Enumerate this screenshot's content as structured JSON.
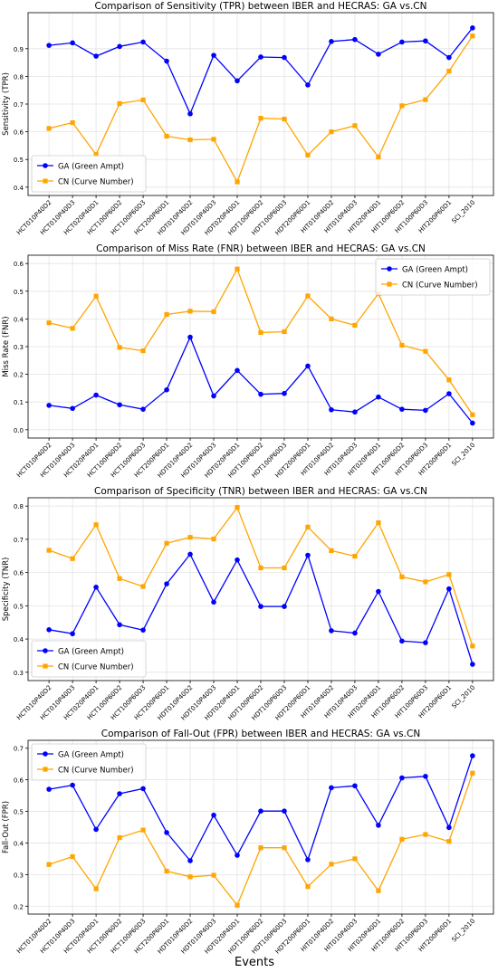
{
  "figure": {
    "xlabel_global": "Events"
  },
  "chart_data": [
    {
      "type": "line",
      "title": "Comparison of Sensitivity (TPR) between IBER and HECRAS: GA vs.CN",
      "xlabel": "",
      "ylabel": "Sensitivity (TPR)",
      "ylim": [
        0.4,
        1.0
      ],
      "yticks": [
        0.4,
        0.5,
        0.6,
        0.7,
        0.8,
        0.9
      ],
      "grid": true,
      "legend_position": "lower-left",
      "categories": [
        "HCT010P40D2",
        "HCT010P40D3",
        "HCT020P40D1",
        "HCT100P60D2",
        "HCT100P60D3",
        "HCT200P60D1",
        "HDT010P40D2",
        "HDT010P40D3",
        "HDT020P40D1",
        "HDT100P60D2",
        "HDT100P60D3",
        "HDT200P60D1",
        "HIT010P40D2",
        "HIT010P40D3",
        "HIT020P40D1",
        "HIT100P60D2",
        "HIT100P60D3",
        "HIT200P60D1",
        "SCI_2010"
      ],
      "series": [
        {
          "name": "GA (Green Ampt)",
          "color": "#0000ff",
          "marker": "circle",
          "values": [
            0.912,
            0.921,
            0.873,
            0.908,
            0.924,
            0.855,
            0.665,
            0.876,
            0.784,
            0.87,
            0.868,
            0.769,
            0.926,
            0.933,
            0.88,
            0.924,
            0.928,
            0.868,
            0.975
          ]
        },
        {
          "name": "CN (Curve Number)",
          "color": "#ffa500",
          "marker": "square",
          "values": [
            0.612,
            0.633,
            0.518,
            0.702,
            0.715,
            0.584,
            0.571,
            0.573,
            0.419,
            0.649,
            0.646,
            0.516,
            0.6,
            0.622,
            0.509,
            0.694,
            0.716,
            0.819,
            0.946
          ]
        }
      ]
    },
    {
      "type": "line",
      "title": "Comparison of Miss Rate (FNR) between IBER and HECRAS: GA vs.CN",
      "xlabel": "",
      "ylabel": "Miss Rate (FNR)",
      "ylim": [
        0.0,
        0.6
      ],
      "yticks": [
        0.0,
        0.1,
        0.2,
        0.3,
        0.4,
        0.5,
        0.6
      ],
      "grid": true,
      "legend_position": "top-right",
      "categories": [
        "HCT010P40D2",
        "HCT010P40D3",
        "HCT020P40D1",
        "HCT100P60D2",
        "HCT100P60D3",
        "HCT200P60D1",
        "HDT010P40D2",
        "HDT010P40D3",
        "HDT020P40D1",
        "HDT100P60D2",
        "HDT100P60D3",
        "HDT200P60D1",
        "HIT010P40D2",
        "HIT010P40D3",
        "HIT020P40D1",
        "HIT100P60D2",
        "HIT100P60D3",
        "HIT200P60D1",
        "SCI_2010"
      ],
      "series": [
        {
          "name": "GA (Green Ampt)",
          "color": "#0000ff",
          "marker": "circle",
          "values": [
            0.088,
            0.077,
            0.125,
            0.09,
            0.074,
            0.144,
            0.334,
            0.122,
            0.214,
            0.128,
            0.131,
            0.23,
            0.072,
            0.064,
            0.118,
            0.074,
            0.07,
            0.13,
            0.024
          ]
        },
        {
          "name": "CN (Curve Number)",
          "color": "#ffa500",
          "marker": "square",
          "values": [
            0.386,
            0.366,
            0.482,
            0.297,
            0.285,
            0.416,
            0.428,
            0.426,
            0.58,
            0.351,
            0.354,
            0.483,
            0.4,
            0.377,
            0.491,
            0.305,
            0.283,
            0.18,
            0.054
          ]
        }
      ]
    },
    {
      "type": "line",
      "title": "Comparison of Specificity (TNR) between IBER and HECRAS: GA vs.CN",
      "xlabel": "",
      "ylabel": "Specificity (TNR)",
      "ylim": [
        0.3,
        0.8
      ],
      "yticks": [
        0.3,
        0.4,
        0.5,
        0.6,
        0.7,
        0.8
      ],
      "grid": true,
      "legend_position": "lower-left",
      "categories": [
        "HCT010P40D2",
        "HCT010P40D3",
        "HCT020P40D1",
        "HCT100P60D2",
        "HCT100P60D3",
        "HCT200P60D1",
        "HDT010P40D2",
        "HDT010P40D3",
        "HDT020P40D1",
        "HDT100P60D2",
        "HDT100P60D3",
        "HDT200P60D1",
        "HIT010P40D2",
        "HIT010P40D3",
        "HIT020P40D1",
        "HIT100P60D2",
        "HIT100P60D3",
        "HIT200P60D1",
        "SCI_2010"
      ],
      "series": [
        {
          "name": "GA (Green Ampt)",
          "color": "#0000ff",
          "marker": "circle",
          "values": [
            0.428,
            0.416,
            0.556,
            0.443,
            0.427,
            0.566,
            0.655,
            0.511,
            0.638,
            0.498,
            0.498,
            0.652,
            0.425,
            0.418,
            0.543,
            0.394,
            0.389,
            0.551,
            0.324
          ]
        },
        {
          "name": "CN (Curve Number)",
          "color": "#ffa500",
          "marker": "square",
          "values": [
            0.667,
            0.642,
            0.744,
            0.582,
            0.558,
            0.688,
            0.706,
            0.701,
            0.796,
            0.614,
            0.614,
            0.737,
            0.666,
            0.649,
            0.75,
            0.587,
            0.572,
            0.594,
            0.379
          ]
        }
      ]
    },
    {
      "type": "line",
      "title": "Comparison of Fall-Out (FPR) between IBER and HECRAS: GA vs.CN",
      "xlabel": "",
      "ylabel": "Fall-Out (FPR)",
      "ylim": [
        0.2,
        0.7
      ],
      "yticks": [
        0.2,
        0.3,
        0.4,
        0.5,
        0.6,
        0.7
      ],
      "grid": true,
      "legend_position": "top-left",
      "categories": [
        "HCT010P40D2",
        "HCT010P40D3",
        "HCT020P40D1",
        "HCT100P60D2",
        "HCT100P60D3",
        "HCT200P60D1",
        "HDT010P40D2",
        "HDT010P40D3",
        "HDT020P40D1",
        "HDT100P60D2",
        "HDT100P60D3",
        "HDT200P60D1",
        "HIT010P40D2",
        "HIT010P40D3",
        "HIT020P40D1",
        "HIT100P60D2",
        "HIT100P60D3",
        "HIT200P60D1",
        "SCI_2010"
      ],
      "series": [
        {
          "name": "GA (Green Ampt)",
          "color": "#0000ff",
          "marker": "circle",
          "values": [
            0.57,
            0.583,
            0.443,
            0.556,
            0.572,
            0.433,
            0.344,
            0.488,
            0.361,
            0.501,
            0.501,
            0.347,
            0.575,
            0.581,
            0.456,
            0.606,
            0.611,
            0.449,
            0.676
          ]
        },
        {
          "name": "CN (Curve Number)",
          "color": "#ffa500",
          "marker": "square",
          "values": [
            0.332,
            0.357,
            0.255,
            0.417,
            0.441,
            0.311,
            0.293,
            0.298,
            0.203,
            0.385,
            0.385,
            0.262,
            0.333,
            0.35,
            0.249,
            0.412,
            0.427,
            0.405,
            0.621
          ]
        }
      ]
    }
  ]
}
